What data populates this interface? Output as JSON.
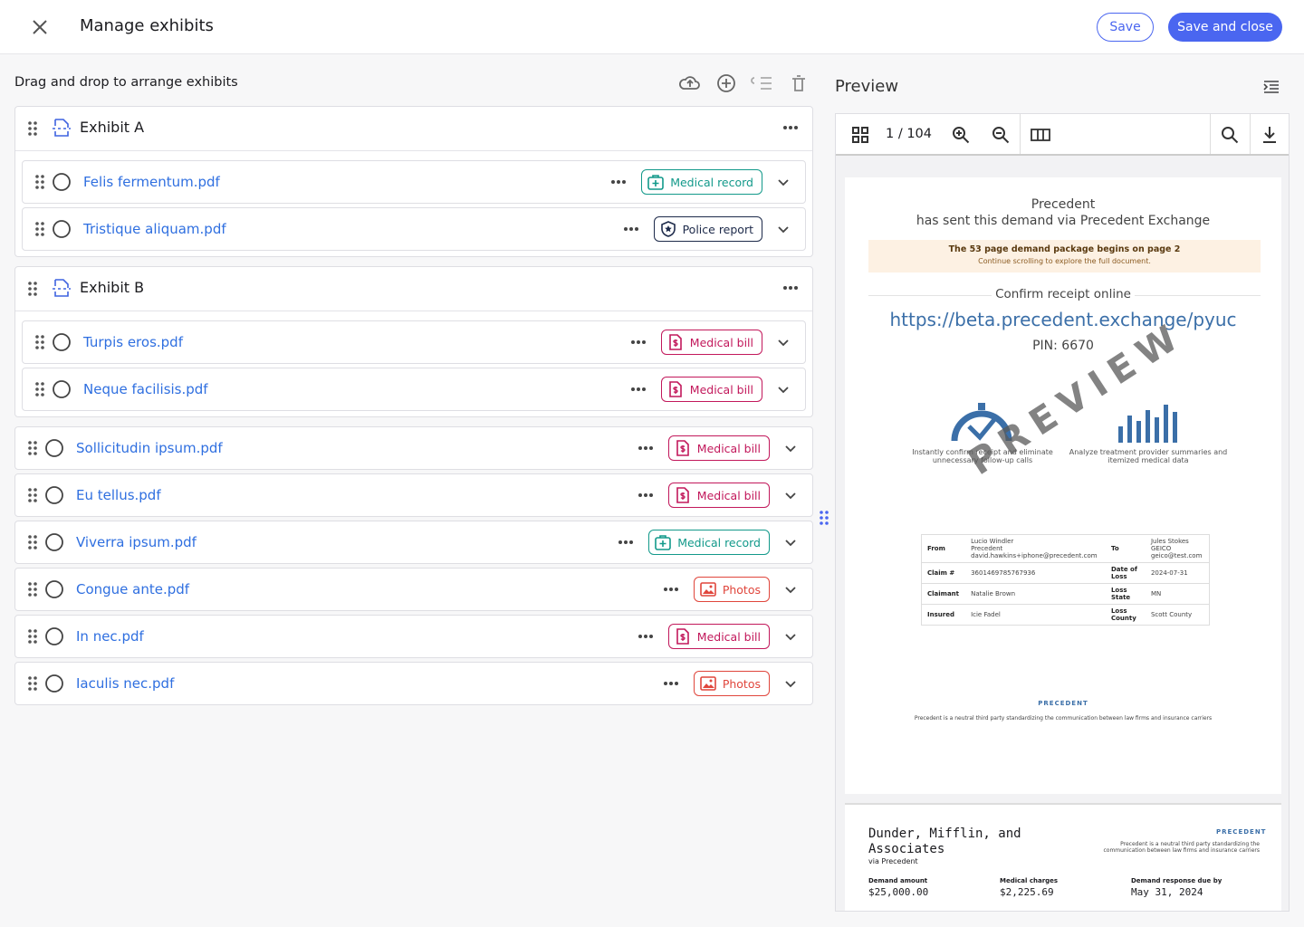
{
  "header": {
    "title": "Manage exhibits",
    "save": "Save",
    "save_close": "Save and close"
  },
  "left": {
    "heading": "Drag and drop to arrange exhibits",
    "exhibits": [
      {
        "name": "Exhibit A",
        "files": [
          {
            "name": "Felis fermentum.pdf",
            "tag": "Medical record",
            "color": "#12998a"
          },
          {
            "name": "Tristique aliquam.pdf",
            "tag": "Police report",
            "color": "#1d2a4a"
          }
        ]
      },
      {
        "name": "Exhibit B",
        "files": [
          {
            "name": "Turpis eros.pdf",
            "tag": "Medical bill",
            "color": "#c2185b"
          },
          {
            "name": "Neque facilisis.pdf",
            "tag": "Medical bill",
            "color": "#c2185b"
          }
        ]
      }
    ],
    "files": [
      {
        "name": "Sollicitudin ipsum.pdf",
        "tag": "Medical bill",
        "color": "#c2185b"
      },
      {
        "name": "Eu tellus.pdf",
        "tag": "Medical bill",
        "color": "#c2185b"
      },
      {
        "name": "Viverra ipsum.pdf",
        "tag": "Medical record",
        "color": "#12998a"
      },
      {
        "name": "Congue ante.pdf",
        "tag": "Photos",
        "color": "#e0463c"
      },
      {
        "name": "In nec.pdf",
        "tag": "Medical bill",
        "color": "#c2185b"
      },
      {
        "name": "Iaculis nec.pdf",
        "tag": "Photos",
        "color": "#e0463c"
      }
    ]
  },
  "preview": {
    "title": "Preview",
    "page": "1 / 104",
    "page1": {
      "sender": "Precedent",
      "sent": "has sent this demand via Precedent Exchange",
      "banner": "The 53 page demand package begins on page 2",
      "banner_sub": "Continue scrolling to explore the full document.",
      "confirm": "Confirm receipt online",
      "url": "https://beta.precedent.exchange/pyuc",
      "pin": "PIN: 6670",
      "watermark": "PREVIEW",
      "feature1": "Instantly confirm receipt and eliminate unnecessary follow-up calls",
      "feature2": "Analyze treatment provider summaries and itemized medical data",
      "table": [
        [
          "From",
          "Lucio Windler\nPrecedent\ndavid.hawkins+iphone@precedent.com",
          "To",
          "Jules Stokes\nGEICO\ngeico@test.com"
        ],
        [
          "Claim #",
          "3601469785767936",
          "Date of Loss",
          "2024-07-31"
        ],
        [
          "Claimant",
          "Natalie Brown",
          "Loss State",
          "MN"
        ],
        [
          "Insured",
          "Icie Fadel",
          "Loss County",
          "Scott County"
        ]
      ],
      "logo": "PRECEDENT",
      "footer": "Precedent is a neutral third party standardizing the communication between law firms and insurance carriers"
    },
    "page2": {
      "firm": "Dunder, Mifflin, and Associates",
      "via": "via Precedent",
      "logo": "PRECEDENT",
      "note": "Precedent is a neutral third party standardizing the communication between law firms and insurance carriers",
      "fields": [
        [
          "Demand amount",
          "$25,000.00"
        ],
        [
          "Medical charges",
          "$2,225.69"
        ],
        [
          "Demand response due by",
          "May 31, 2024"
        ]
      ]
    }
  }
}
